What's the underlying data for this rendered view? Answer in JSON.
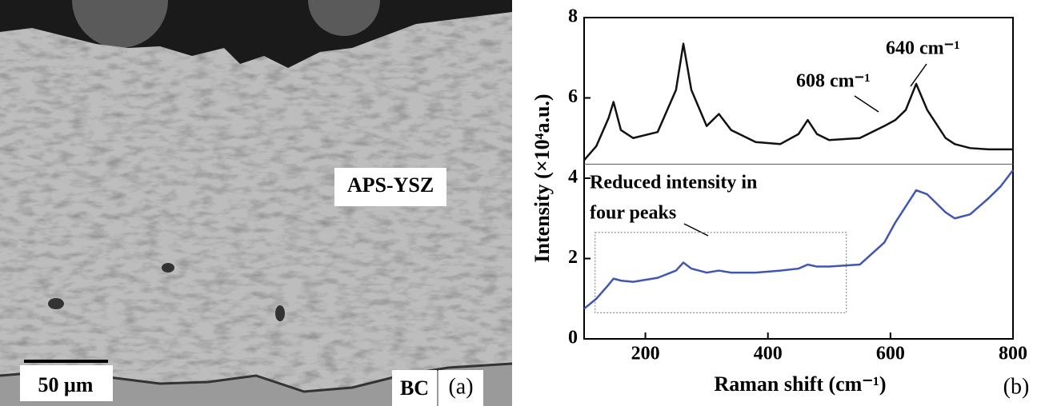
{
  "panel_a": {
    "layer_label": "APS-YSZ",
    "scale_bar": "50 μm",
    "substrate_label": "BC",
    "panel_label": "(a)"
  },
  "chart_data": {
    "type": "line",
    "panel_label": "(b)",
    "x_label": "Raman shift (cm⁻¹)",
    "y_label": "Intensity (×10⁴a.u.)",
    "annotations": [
      "608 cm⁻¹",
      "640 cm⁻¹",
      "Reduced intensity in",
      "four peaks"
    ],
    "x": [
      100,
      120,
      140,
      148,
      160,
      180,
      220,
      250,
      262,
      275,
      300,
      320,
      340,
      380,
      420,
      450,
      465,
      480,
      500,
      550,
      590,
      608,
      625,
      642,
      660,
      690,
      705,
      730,
      760,
      780,
      800
    ],
    "series": [
      {
        "color": "#111111",
        "values": [
          4.45,
          4.8,
          5.5,
          5.9,
          5.2,
          5.0,
          5.15,
          6.2,
          7.35,
          6.2,
          5.3,
          5.6,
          5.2,
          4.9,
          4.85,
          5.1,
          5.45,
          5.1,
          4.95,
          5.0,
          5.3,
          5.45,
          5.7,
          6.35,
          5.7,
          5.0,
          4.85,
          4.75,
          4.72,
          4.72,
          4.72
        ]
      },
      {
        "color": "#3f57b3",
        "values": [
          0.75,
          1.0,
          1.35,
          1.5,
          1.45,
          1.42,
          1.52,
          1.7,
          1.9,
          1.75,
          1.65,
          1.7,
          1.65,
          1.65,
          1.7,
          1.75,
          1.85,
          1.8,
          1.8,
          1.85,
          2.4,
          2.9,
          3.3,
          3.7,
          3.6,
          3.15,
          3.0,
          3.1,
          3.5,
          3.8,
          4.2
        ]
      }
    ],
    "separator_y": 4.35,
    "highlight_box": {
      "x": [
        118,
        528
      ],
      "y": [
        0.65,
        2.65
      ]
    },
    "xlim": [
      100,
      800
    ],
    "xticks": [
      200,
      400,
      600,
      800
    ],
    "ylim": [
      0,
      8
    ],
    "yticks": [
      0,
      2,
      4,
      6,
      8
    ]
  }
}
